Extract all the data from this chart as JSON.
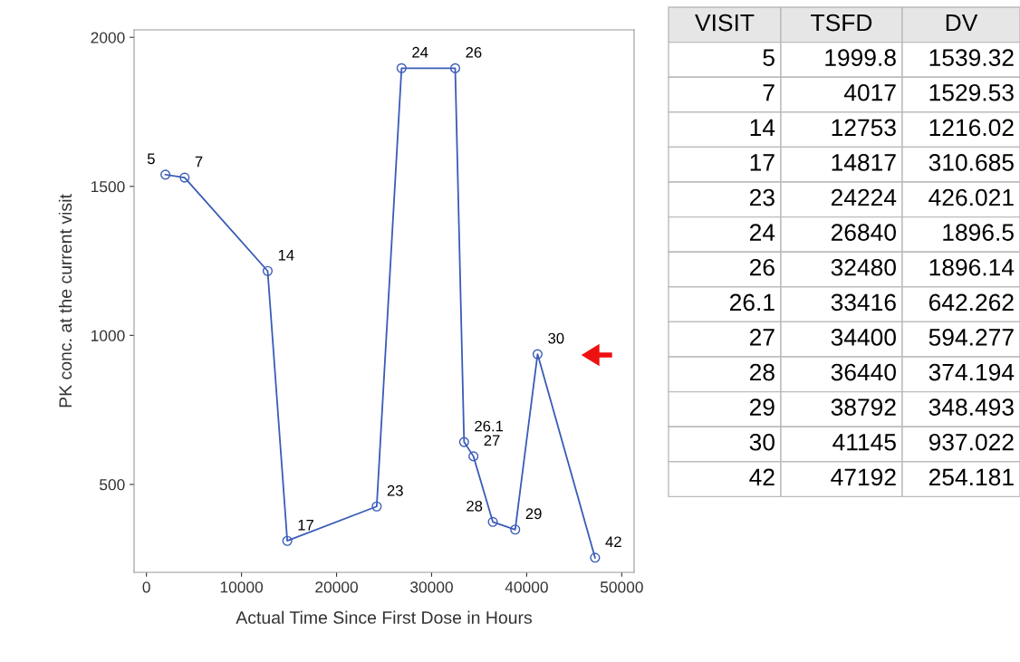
{
  "chart_data": [
    {
      "type": "line",
      "xlabel": "Actual Time Since First Dose in Hours",
      "ylabel": "PK conc. at the current visit",
      "x": [
        1999.8,
        4017,
        12753,
        14817,
        24224,
        26840,
        32480,
        33416,
        34400,
        36440,
        38792,
        41145,
        47192
      ],
      "values": [
        1539.32,
        1529.53,
        1216.02,
        310.685,
        426.021,
        1896.5,
        1896.14,
        642.262,
        594.277,
        374.194,
        348.493,
        937.022,
        254.181
      ],
      "color": "#3a5cb8",
      "marker": "circle",
      "line_style": "solid",
      "grid": false,
      "xlim": [
        -1300,
        51300
      ],
      "xticks": [
        0,
        10000,
        20000,
        30000,
        40000,
        50000
      ],
      "ylim": [
        205,
        2025
      ],
      "yticks": [
        500,
        1000,
        1500,
        2000
      ],
      "annotations": [
        {
          "text": "5",
          "x": 1999.8,
          "y": 1539.32
        },
        {
          "text": "7",
          "x": 4017,
          "y": 1529.53
        },
        {
          "text": "14",
          "x": 12753,
          "y": 1216.02
        },
        {
          "text": "17",
          "x": 14817,
          "y": 310.685
        },
        {
          "text": "23",
          "x": 24224,
          "y": 426.021
        },
        {
          "text": "24",
          "x": 26840,
          "y": 1896.5
        },
        {
          "text": "26",
          "x": 32480,
          "y": 1896.14
        },
        {
          "text": "26.1",
          "x": 33416,
          "y": 642.262
        },
        {
          "text": "27",
          "x": 34400,
          "y": 594.277
        },
        {
          "text": "28",
          "x": 36440,
          "y": 374.194
        },
        {
          "text": "29",
          "x": 38792,
          "y": 348.493
        },
        {
          "text": "30",
          "x": 41145,
          "y": 937.022
        },
        {
          "text": "42",
          "x": 47192,
          "y": 254.181
        }
      ]
    },
    {
      "type": "other",
      "annotations": [
        "VISIT",
        "TSFD",
        "DV",
        "5",
        "1999.8",
        "1539.32",
        "7",
        "4017",
        "1529.53",
        "14",
        "12753",
        "1216.02",
        "17",
        "14817",
        "310.685",
        "23",
        "24224",
        "426.021",
        "24",
        "26840",
        "1896.5",
        "26",
        "32480",
        "1896.14",
        "26.1",
        "33416",
        "642.262",
        "27",
        "34400",
        "594.277",
        "28",
        "36440",
        "374.194",
        "29",
        "38792",
        "348.493",
        "30",
        "41145",
        "937.022",
        "42",
        "47192",
        "254.181"
      ]
    }
  ]
}
